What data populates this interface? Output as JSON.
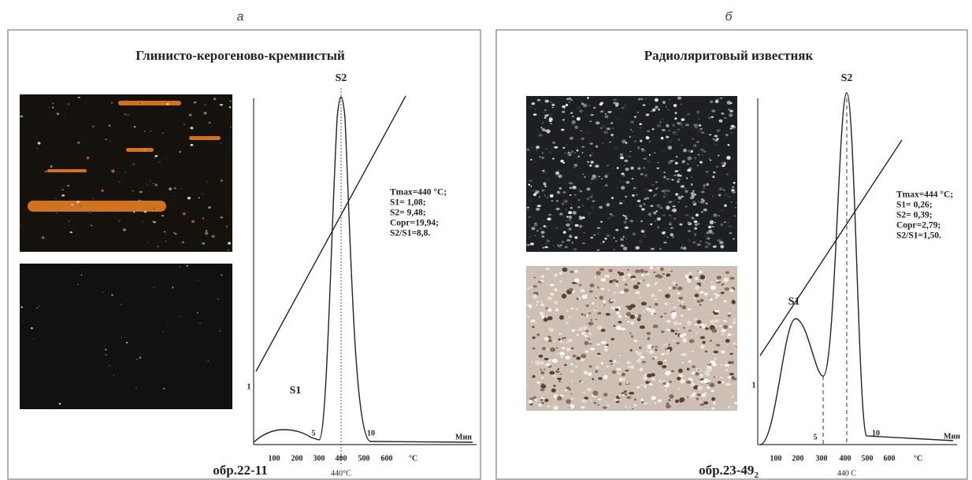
{
  "panels": [
    {
      "letter": "а",
      "title": "Глинисто-керогеново-кремнистый",
      "s2_label": "S2",
      "s1_label": "S1",
      "stats": [
        "Tmax=440 °C;",
        "S1= 1,08;",
        "S2= 9,48;",
        "Сорг=19,94;",
        "S2/S1=8,8."
      ],
      "temp_ticks": [
        "100",
        "200",
        "300",
        "400",
        "500",
        "600"
      ],
      "temp_unit": "°C",
      "time_ticks": [
        "1",
        "5",
        "10"
      ],
      "time_unit": "Мин",
      "tmax_label": "440°C",
      "sample": "обр.22-11"
    },
    {
      "letter": "б",
      "title": "Радиоляритовый известняк",
      "s2_label": "S2",
      "s1_label": "S1",
      "stats": [
        "Tmax=444 °C;",
        "S1= 0,26;",
        "S2= 0,39;",
        "Сорг=2,79;",
        "S2/S1=1,50."
      ],
      "temp_ticks": [
        "100",
        "200",
        "300",
        "400",
        "500",
        "600"
      ],
      "temp_unit": "°C",
      "time_ticks": [
        "1",
        "5",
        "10"
      ],
      "time_unit": "Мин",
      "tmax_label": "440 C",
      "sample": "обр.23-49",
      "sample_sub": "2"
    }
  ]
}
